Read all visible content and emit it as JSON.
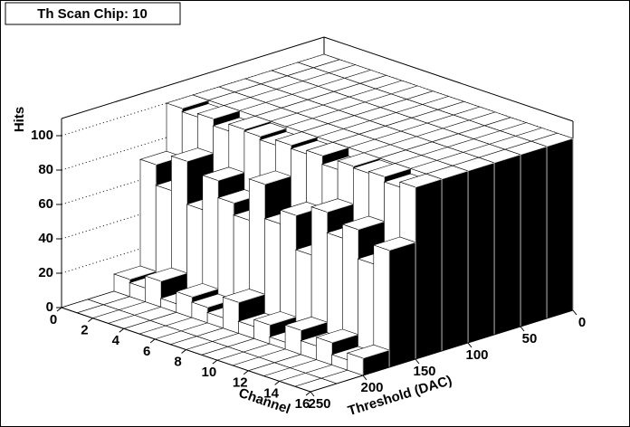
{
  "chart_data": {
    "type": "lego",
    "title": "Th Scan Chip: 10",
    "zlabel": "Hits",
    "xlabel": "Threshold (DAC)",
    "ylabel": "Channel",
    "x_bins": [
      0,
      25,
      50,
      75,
      100,
      125,
      150,
      175,
      200,
      225,
      250
    ],
    "y_bins": [
      0,
      1,
      2,
      3,
      4,
      5,
      6,
      7,
      8,
      9,
      10,
      11,
      12,
      13,
      14,
      15,
      16
    ],
    "values": [
      [
        100,
        100,
        100,
        100,
        100,
        100,
        72,
        10,
        0,
        0
      ],
      [
        100,
        100,
        100,
        100,
        100,
        98,
        60,
        8,
        0,
        0
      ],
      [
        100,
        100,
        100,
        100,
        100,
        100,
        80,
        15,
        0,
        0
      ],
      [
        100,
        100,
        100,
        100,
        100,
        96,
        55,
        5,
        0,
        0
      ],
      [
        100,
        100,
        100,
        100,
        100,
        100,
        75,
        12,
        0,
        0
      ],
      [
        100,
        100,
        100,
        100,
        100,
        99,
        65,
        9,
        0,
        0
      ],
      [
        100,
        100,
        100,
        100,
        100,
        97,
        58,
        6,
        0,
        0
      ],
      [
        100,
        100,
        100,
        100,
        100,
        100,
        82,
        18,
        0,
        0
      ],
      [
        100,
        100,
        100,
        100,
        100,
        98,
        62,
        7,
        0,
        0
      ],
      [
        100,
        100,
        100,
        100,
        100,
        100,
        70,
        11,
        0,
        0
      ],
      [
        100,
        100,
        100,
        100,
        100,
        95,
        50,
        4,
        0,
        0
      ],
      [
        100,
        100,
        100,
        100,
        100,
        100,
        78,
        14,
        0,
        0
      ],
      [
        100,
        100,
        100,
        100,
        100,
        99,
        66,
        8,
        0,
        0
      ],
      [
        100,
        100,
        100,
        100,
        100,
        100,
        74,
        13,
        0,
        0
      ],
      [
        100,
        100,
        100,
        100,
        100,
        97,
        57,
        6,
        0,
        0
      ],
      [
        100,
        100,
        100,
        100,
        100,
        100,
        68,
        10,
        0,
        0
      ]
    ],
    "xlim": [
      0,
      250
    ],
    "xticks": [
      0,
      50,
      100,
      150,
      200,
      250
    ],
    "ylim": [
      0,
      16
    ],
    "yticks": [
      0,
      2,
      4,
      6,
      8,
      10,
      12,
      14,
      16
    ],
    "zlim": [
      0,
      110
    ],
    "zticks": [
      0,
      20,
      40,
      60,
      80,
      100
    ],
    "grid": true
  }
}
